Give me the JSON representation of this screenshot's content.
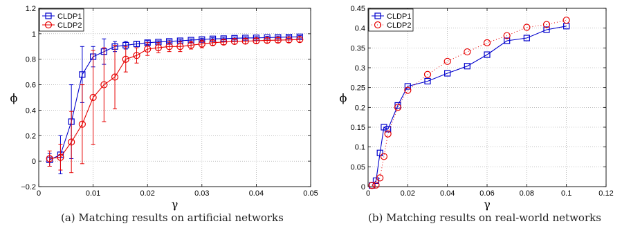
{
  "captions": {
    "a": "(a) Matching results on artificial networks",
    "b": "(b) Matching results on real-world networks"
  },
  "colors": {
    "cldp1": "#0000cc",
    "cldp2": "#e60000"
  },
  "chart_data": [
    {
      "type": "line",
      "xlabel": "γ",
      "ylabel": "ϕ",
      "xlim": [
        0,
        0.05
      ],
      "ylim": [
        -0.2,
        1.2
      ],
      "xticks": [
        "0",
        "0.01",
        "0.02",
        "0.03",
        "0.04",
        "0.05"
      ],
      "xtick_values": [
        0,
        0.01,
        0.02,
        0.03,
        0.04,
        0.05
      ],
      "yticks": [
        "−0.2",
        "0",
        "0.2",
        "0.4",
        "0.6",
        "0.8",
        "1",
        "1.2"
      ],
      "ytick_values": [
        -0.2,
        0,
        0.2,
        0.4,
        0.6,
        0.8,
        1,
        1.2
      ],
      "grid": true,
      "legend": "top-left",
      "series": [
        {
          "name": "CLDP1",
          "marker": "square",
          "line": "solid",
          "error_bars": true,
          "x": [
            0.002,
            0.004,
            0.006,
            0.008,
            0.01,
            0.012,
            0.014,
            0.016,
            0.018,
            0.02,
            0.022,
            0.024,
            0.026,
            0.028,
            0.03,
            0.032,
            0.034,
            0.036,
            0.038,
            0.04,
            0.042,
            0.044,
            0.046,
            0.048
          ],
          "y": [
            0.01,
            0.05,
            0.31,
            0.68,
            0.82,
            0.86,
            0.9,
            0.91,
            0.92,
            0.93,
            0.935,
            0.94,
            0.945,
            0.95,
            0.955,
            0.96,
            0.962,
            0.965,
            0.967,
            0.968,
            0.97,
            0.972,
            0.974,
            0.976
          ],
          "err": [
            0.05,
            0.15,
            0.29,
            0.22,
            0.08,
            0.1,
            0.04,
            0.03,
            0.02,
            0.015,
            0.01,
            0.01,
            0.01,
            0.01,
            0.01,
            0.01,
            0.01,
            0.01,
            0.01,
            0.01,
            0.01,
            0.01,
            0.01,
            0.01
          ]
        },
        {
          "name": "CLDP2",
          "marker": "circle",
          "line": "solid",
          "error_bars": true,
          "x": [
            0.002,
            0.004,
            0.006,
            0.008,
            0.01,
            0.012,
            0.014,
            0.016,
            0.018,
            0.02,
            0.022,
            0.024,
            0.026,
            0.028,
            0.03,
            0.032,
            0.034,
            0.036,
            0.038,
            0.04,
            0.042,
            0.044,
            0.046,
            0.048
          ],
          "y": [
            0.02,
            0.03,
            0.15,
            0.29,
            0.5,
            0.6,
            0.66,
            0.8,
            0.83,
            0.88,
            0.89,
            0.9,
            0.9,
            0.91,
            0.92,
            0.93,
            0.935,
            0.94,
            0.942,
            0.945,
            0.948,
            0.95,
            0.952,
            0.955
          ],
          "err": [
            0.06,
            0.1,
            0.24,
            0.31,
            0.37,
            0.29,
            0.25,
            0.1,
            0.06,
            0.05,
            0.04,
            0.04,
            0.04,
            0.03,
            0.03,
            0.02,
            0.02,
            0.02,
            0.02,
            0.02,
            0.02,
            0.02,
            0.02,
            0.02
          ]
        }
      ]
    },
    {
      "type": "line",
      "xlabel": "γ",
      "ylabel": "ϕ",
      "xlim": [
        0,
        0.12
      ],
      "ylim": [
        0,
        0.45
      ],
      "xticks": [
        "0",
        "0.02",
        "0.04",
        "0.06",
        "0.08",
        "0.1",
        "0.12"
      ],
      "xtick_values": [
        0,
        0.02,
        0.04,
        0.06,
        0.08,
        0.1,
        0.12
      ],
      "yticks": [
        "0",
        "0.05",
        "0.1",
        "0.15",
        "0.2",
        "0.25",
        "0.3",
        "0.35",
        "0.4",
        "0.45"
      ],
      "ytick_values": [
        0,
        0.05,
        0.1,
        0.15,
        0.2,
        0.25,
        0.3,
        0.35,
        0.4,
        0.45
      ],
      "grid": true,
      "legend": "top-left",
      "series": [
        {
          "name": "CLDP1",
          "marker": "square",
          "line": "solid",
          "error_bars": false,
          "x": [
            0.002,
            0.004,
            0.006,
            0.008,
            0.01,
            0.015,
            0.02,
            0.03,
            0.04,
            0.05,
            0.06,
            0.07,
            0.08,
            0.09,
            0.1
          ],
          "y": [
            0.003,
            0.015,
            0.085,
            0.15,
            0.145,
            0.205,
            0.253,
            0.266,
            0.286,
            0.304,
            0.333,
            0.368,
            0.375,
            0.396,
            0.405
          ]
        },
        {
          "name": "CLDP2",
          "marker": "circle",
          "line": "dotted",
          "error_bars": false,
          "x": [
            0.002,
            0.004,
            0.006,
            0.008,
            0.01,
            0.015,
            0.02,
            0.03,
            0.04,
            0.05,
            0.06,
            0.07,
            0.08,
            0.09,
            0.1
          ],
          "y": [
            0.003,
            0.004,
            0.022,
            0.076,
            0.133,
            0.2,
            0.243,
            0.283,
            0.316,
            0.34,
            0.363,
            0.381,
            0.402,
            0.409,
            0.42
          ]
        }
      ]
    }
  ]
}
